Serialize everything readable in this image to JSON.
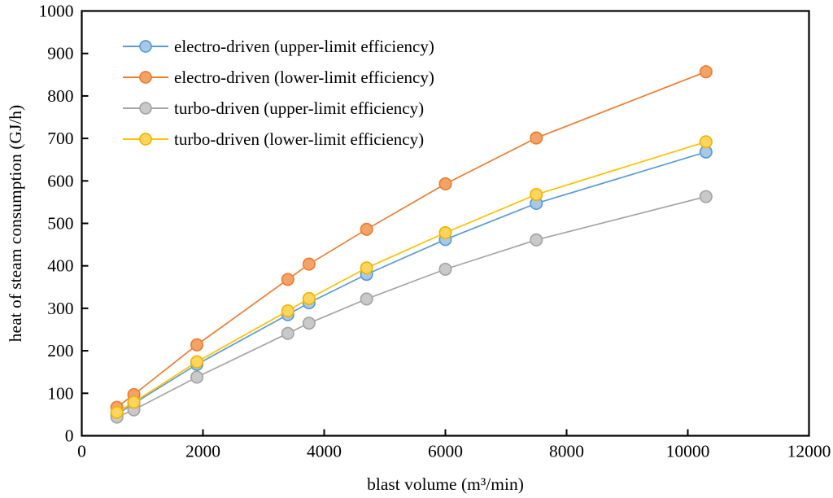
{
  "chart_data": {
    "type": "line",
    "title": "",
    "xlabel": "blast volume (m³/min)",
    "ylabel": "heat of steam consumption (GJ/h)",
    "xlim": [
      0,
      12000
    ],
    "ylim": [
      0,
      1000
    ],
    "x_ticks": [
      0,
      2000,
      4000,
      6000,
      8000,
      10000,
      12000
    ],
    "y_ticks": [
      0,
      100,
      200,
      300,
      400,
      500,
      600,
      700,
      800,
      900,
      1000
    ],
    "grid": false,
    "legend_position": "upper-left-inside",
    "axis_color": "#000000",
    "x": [
      580,
      860,
      1900,
      3400,
      3750,
      4700,
      6000,
      7500,
      10300
    ],
    "series": [
      {
        "name": "electro-driven (upper-limit efficiency)",
        "line_color": "#5B9BD5",
        "marker_fill": "#A7C9E8",
        "marker_stroke": "#5B9BD5",
        "values": [
          50,
          76,
          168,
          285,
          313,
          380,
          462,
          547,
          668
        ]
      },
      {
        "name": "electro-driven (lower-limit efficiency)",
        "line_color": "#ED7D31",
        "marker_fill": "#F2A468",
        "marker_stroke": "#ED7D31",
        "values": [
          67,
          97,
          214,
          368,
          404,
          486,
          593,
          701,
          857
        ]
      },
      {
        "name": "turbo-driven (upper-limit efficiency)",
        "line_color": "#A5A5A5",
        "marker_fill": "#C9C9C9",
        "marker_stroke": "#A5A5A5",
        "values": [
          44,
          61,
          138,
          241,
          265,
          322,
          392,
          461,
          563
        ]
      },
      {
        "name": "turbo-driven (lower-limit efficiency)",
        "line_color": "#FFC000",
        "marker_fill": "#FFD560",
        "marker_stroke": "#F0B400",
        "values": [
          55,
          79,
          174,
          294,
          323,
          395,
          478,
          568,
          692
        ]
      }
    ]
  }
}
